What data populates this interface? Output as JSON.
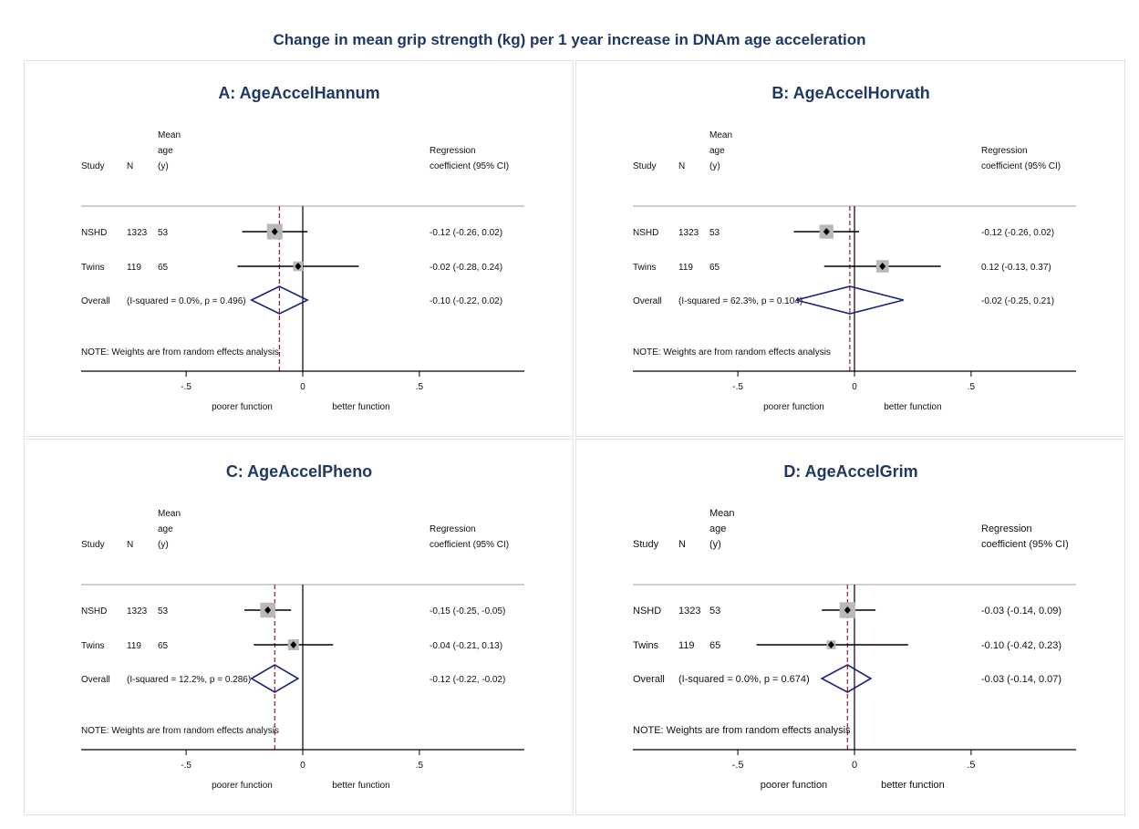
{
  "figure_title": "Change in mean grip strength (kg) per 1 year increase in DNAm age acceleration",
  "colors": {
    "title": "#1f3864",
    "diamond": "#1a237e",
    "ref_line": "#a0152a",
    "weight_box": "#b9b9b9",
    "axis": "#000000",
    "separator": "#b5b5b5"
  },
  "headers": {
    "study": "Study",
    "n": "N",
    "mean": "Mean",
    "age": "age",
    "y": "(y)",
    "regression": "Regression",
    "coefficient": "coefficient (95% CI)"
  },
  "note": "NOTE: Weights are from random effects analysis",
  "x_labels": {
    "left": "poorer function",
    "right": "better function"
  },
  "chart_data": [
    {
      "type": "forest",
      "title": "A: AgeAccelHannum",
      "xlim": [
        -0.95,
        0.95
      ],
      "ticks": [
        {
          "value": -0.5,
          "label": "-.5"
        },
        {
          "value": 0,
          "label": "0"
        },
        {
          "value": 0.5,
          "label": ".5"
        }
      ],
      "studies": [
        {
          "name": "NSHD",
          "n": "1323",
          "age": "53",
          "est": -0.12,
          "lo": -0.26,
          "hi": 0.02,
          "weight": 0.85,
          "label": "-0.12 (-0.26, 0.02)"
        },
        {
          "name": "Twins",
          "n": "119",
          "age": "65",
          "est": -0.02,
          "lo": -0.28,
          "hi": 0.24,
          "weight": 0.15,
          "label": "-0.02 (-0.28, 0.24)"
        }
      ],
      "overall": {
        "name": "Overall",
        "het": "(I-squared = 0.0%, p = 0.496)",
        "est": -0.1,
        "lo": -0.22,
        "hi": 0.02,
        "label": "-0.10 (-0.22, 0.02)"
      }
    },
    {
      "type": "forest",
      "title": "B: AgeAccelHorvath",
      "xlim": [
        -0.95,
        0.95
      ],
      "ticks": [
        {
          "value": -0.5,
          "label": "-.5"
        },
        {
          "value": 0,
          "label": "0"
        },
        {
          "value": 0.5,
          "label": ".5"
        }
      ],
      "studies": [
        {
          "name": "NSHD",
          "n": "1323",
          "age": "53",
          "est": -0.12,
          "lo": -0.26,
          "hi": 0.02,
          "weight": 0.6,
          "label": "-0.12 (-0.26, 0.02)"
        },
        {
          "name": "Twins",
          "n": "119",
          "age": "65",
          "est": 0.12,
          "lo": -0.13,
          "hi": 0.37,
          "weight": 0.4,
          "label": "0.12 (-0.13, 0.37)"
        }
      ],
      "overall": {
        "name": "Overall",
        "het": "(I-squared = 62.3%, p = 0.104)",
        "est": -0.02,
        "lo": -0.25,
        "hi": 0.21,
        "label": "-0.02 (-0.25, 0.21)"
      }
    },
    {
      "type": "forest",
      "title": "C: AgeAccelPheno",
      "xlim": [
        -0.95,
        0.95
      ],
      "ticks": [
        {
          "value": -0.5,
          "label": "-.5"
        },
        {
          "value": 0,
          "label": "0"
        },
        {
          "value": 0.5,
          "label": ".5"
        }
      ],
      "studies": [
        {
          "name": "NSHD",
          "n": "1323",
          "age": "53",
          "est": -0.15,
          "lo": -0.25,
          "hi": -0.05,
          "weight": 0.75,
          "label": "-0.15 (-0.25, -0.05)"
        },
        {
          "name": "Twins",
          "n": "119",
          "age": "65",
          "est": -0.04,
          "lo": -0.21,
          "hi": 0.13,
          "weight": 0.25,
          "label": "-0.04 (-0.21, 0.13)"
        }
      ],
      "overall": {
        "name": "Overall",
        "het": "(I-squared = 12.2%, p = 0.286)",
        "est": -0.12,
        "lo": -0.22,
        "hi": -0.02,
        "label": "-0.12 (-0.22, -0.02)"
      }
    },
    {
      "type": "forest",
      "title": "D: AgeAccelGrim",
      "xlim": [
        -0.95,
        0.95
      ],
      "ticks": [
        {
          "value": -0.5,
          "label": "-.5"
        },
        {
          "value": 0,
          "label": "0"
        },
        {
          "value": 0.5,
          "label": ".5"
        }
      ],
      "studies": [
        {
          "name": "NSHD",
          "n": "1323",
          "age": "53",
          "est": -0.03,
          "lo": -0.14,
          "hi": 0.09,
          "weight": 0.9,
          "label": "-0.03 (-0.14, 0.09)"
        },
        {
          "name": "Twins",
          "n": "119",
          "age": "65",
          "est": -0.1,
          "lo": -0.42,
          "hi": 0.23,
          "weight": 0.1,
          "label": "-0.10 (-0.42, 0.23)"
        }
      ],
      "overall": {
        "name": "Overall",
        "het": "(I-squared = 0.0%, p = 0.674)",
        "est": -0.03,
        "lo": -0.14,
        "hi": 0.07,
        "label": "-0.03 (-0.14, 0.07)"
      }
    }
  ]
}
